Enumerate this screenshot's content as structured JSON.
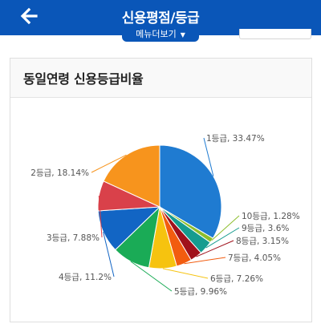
{
  "header": {
    "title": "신용평점/등급",
    "menu_label": "메뉴더보기",
    "color": "#0a56b8"
  },
  "card": {
    "title": "동일연령 신용등급비율"
  },
  "chart_data": {
    "type": "pie",
    "title": "동일연령 신용등급비율",
    "slices": [
      {
        "label": "1등급, 33.47%",
        "category": "1등급",
        "value": 33.47,
        "color": "#1f7bd1"
      },
      {
        "label": "10등급, 1.28%",
        "category": "10등급",
        "value": 1.28,
        "color": "#8dbe2d"
      },
      {
        "label": "9등급, 3.6%",
        "category": "9등급",
        "value": 3.6,
        "color": "#169c8f"
      },
      {
        "label": "8등급, 3.15%",
        "category": "8등급",
        "value": 3.15,
        "color": "#a0111b"
      },
      {
        "label": "7등급, 4.05%",
        "category": "7등급",
        "value": 4.05,
        "color": "#f25c0f"
      },
      {
        "label": "6등급, 7.26%",
        "category": "6등급",
        "value": 7.26,
        "color": "#f6c30f"
      },
      {
        "label": "5등급, 9.96%",
        "category": "5등급",
        "value": 9.96,
        "color": "#1aab56"
      },
      {
        "label": "4등급, 11.2%",
        "category": "4등급",
        "value": 11.2,
        "color": "#1265c4"
      },
      {
        "label": "3등급, 7.88%",
        "category": "3등급",
        "value": 7.88,
        "color": "#d9414a"
      },
      {
        "label": "2등급, 18.14%",
        "category": "2등급",
        "value": 18.14,
        "color": "#f7941d"
      }
    ]
  }
}
